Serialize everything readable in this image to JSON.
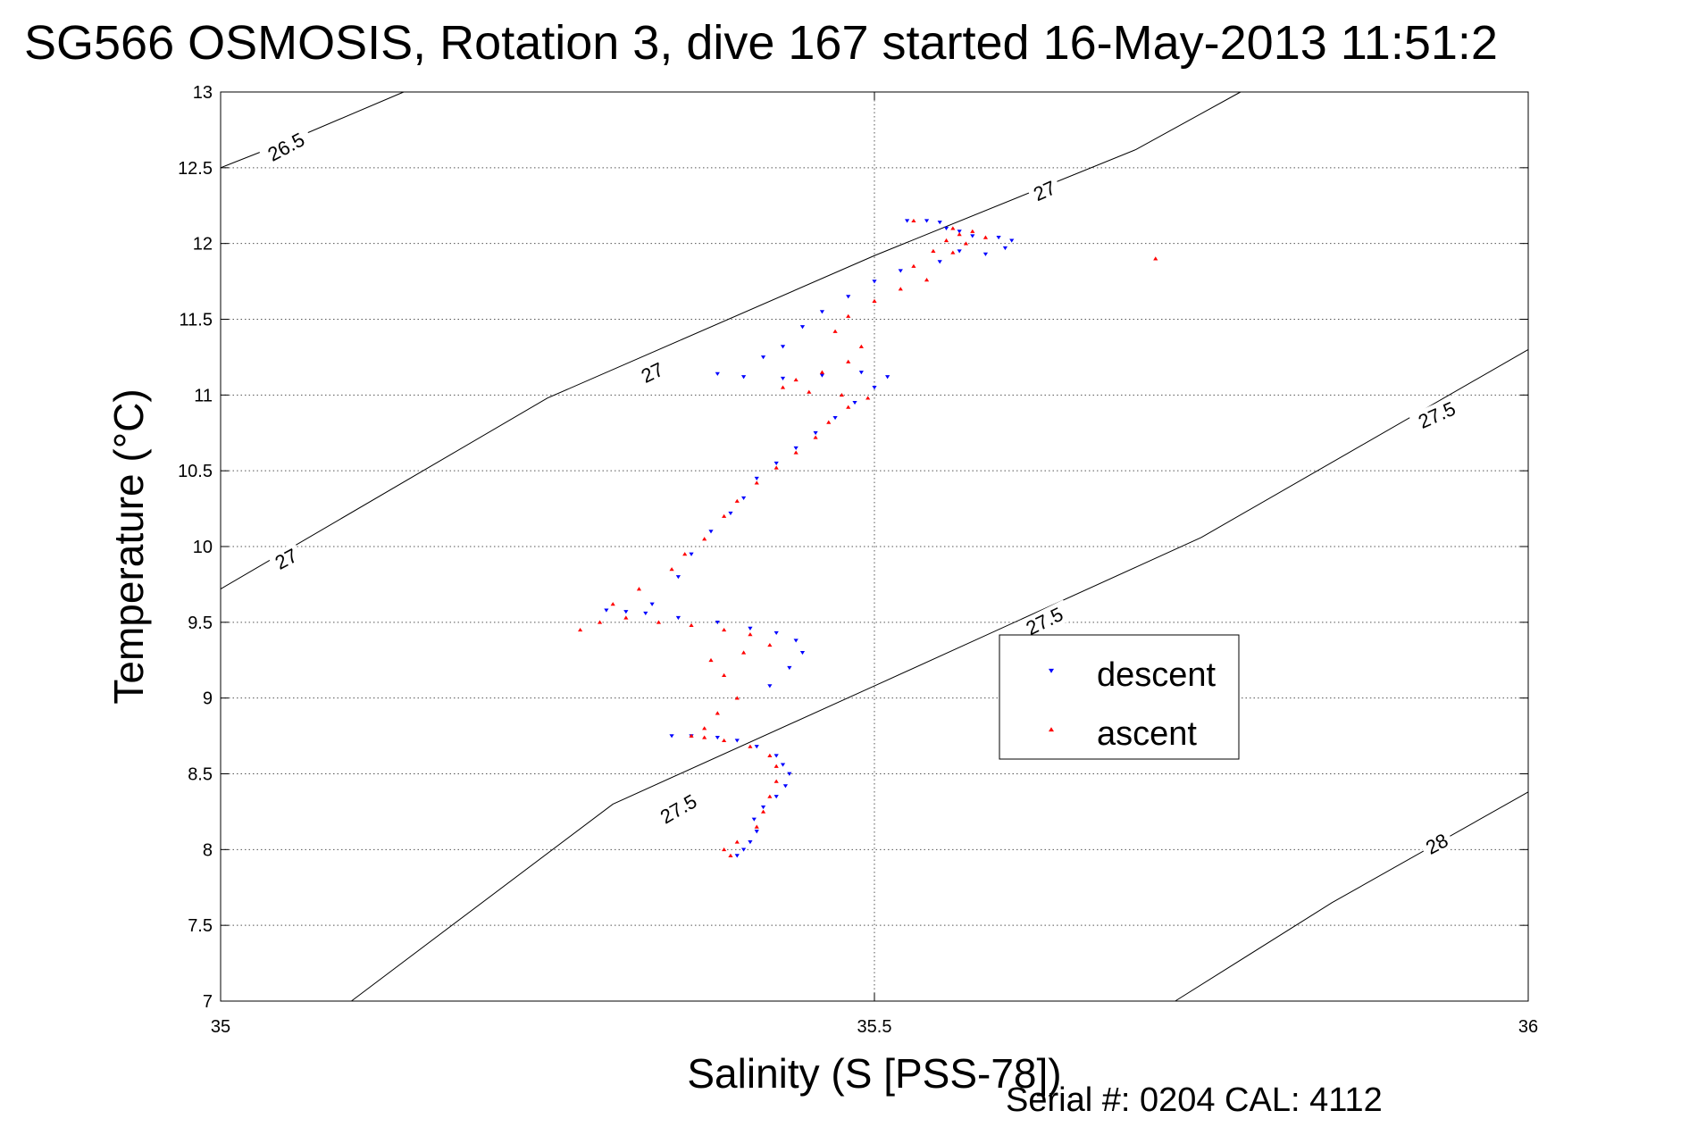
{
  "chart_data": {
    "type": "scatter",
    "title": "SG566 OSMOSIS, Rotation 3, dive 167 started 16-May-2013 11:51:2",
    "xlabel": "Salinity (S [PSS-78])",
    "ylabel": "Temperature (°C)",
    "xlim": [
      35,
      36
    ],
    "ylim": [
      7,
      13
    ],
    "x_ticks": [
      "35",
      "35.5",
      "36"
    ],
    "y_ticks": [
      "7",
      "7.5",
      "8",
      "8.5",
      "9",
      "9.5",
      "10",
      "10.5",
      "11",
      "11.5",
      "12",
      "12.5",
      "13"
    ],
    "grid": true,
    "legend_position": "center-right",
    "density_contours": {
      "lines": [
        {
          "value": "26.5",
          "points": [
            [
              35.0,
              12.5
            ],
            [
              35.05,
              12.67
            ],
            [
              35.14,
              13.0
            ]
          ]
        },
        {
          "value": "27",
          "points": [
            [
              35.0,
              9.72
            ],
            [
              35.25,
              10.98
            ],
            [
              35.5,
              11.92
            ],
            [
              35.7,
              12.62
            ],
            [
              35.78,
              13.0
            ]
          ]
        },
        {
          "value": "27.5",
          "points": [
            [
              35.1,
              7.0
            ],
            [
              35.3,
              8.3
            ],
            [
              35.5,
              9.08
            ],
            [
              35.75,
              10.06
            ],
            [
              36.0,
              11.3
            ]
          ]
        },
        {
          "value": "28",
          "points": [
            [
              35.73,
              7.0
            ],
            [
              35.85,
              7.65
            ],
            [
              36.0,
              8.38
            ]
          ]
        }
      ],
      "labels": [
        {
          "text": "26.5",
          "s": 35.05,
          "t": 12.64,
          "angle": -28
        },
        {
          "text": "27",
          "s": 35.05,
          "t": 9.92,
          "angle": -28
        },
        {
          "text": "27",
          "s": 35.33,
          "t": 11.15,
          "angle": -26
        },
        {
          "text": "27",
          "s": 35.63,
          "t": 12.35,
          "angle": -24
        },
        {
          "text": "27.5",
          "s": 35.35,
          "t": 8.27,
          "angle": -30
        },
        {
          "text": "27.5",
          "s": 35.63,
          "t": 9.51,
          "angle": -26
        },
        {
          "text": "27.5",
          "s": 35.93,
          "t": 10.87,
          "angle": -24
        },
        {
          "text": "28",
          "s": 35.93,
          "t": 8.04,
          "angle": -28
        }
      ]
    },
    "series": [
      {
        "name": "descent",
        "color": "#0000ff",
        "marker": "triangle-down",
        "points": [
          [
            35.395,
            7.96
          ],
          [
            35.4,
            8.0
          ],
          [
            35.405,
            8.05
          ],
          [
            35.41,
            8.12
          ],
          [
            35.408,
            8.2
          ],
          [
            35.415,
            8.28
          ],
          [
            35.425,
            8.35
          ],
          [
            35.432,
            8.42
          ],
          [
            35.435,
            8.5
          ],
          [
            35.43,
            8.56
          ],
          [
            35.425,
            8.62
          ],
          [
            35.41,
            8.68
          ],
          [
            35.395,
            8.72
          ],
          [
            35.38,
            8.74
          ],
          [
            35.36,
            8.75
          ],
          [
            35.345,
            8.75
          ],
          [
            35.42,
            9.08
          ],
          [
            35.435,
            9.2
          ],
          [
            35.445,
            9.3
          ],
          [
            35.44,
            9.38
          ],
          [
            35.425,
            9.43
          ],
          [
            35.405,
            9.46
          ],
          [
            35.38,
            9.5
          ],
          [
            35.35,
            9.53
          ],
          [
            35.325,
            9.56
          ],
          [
            35.31,
            9.57
          ],
          [
            35.295,
            9.58
          ],
          [
            35.33,
            9.62
          ],
          [
            35.35,
            9.8
          ],
          [
            35.36,
            9.95
          ],
          [
            35.375,
            10.1
          ],
          [
            35.39,
            10.22
          ],
          [
            35.4,
            10.32
          ],
          [
            35.41,
            10.45
          ],
          [
            35.425,
            10.55
          ],
          [
            35.44,
            10.65
          ],
          [
            35.455,
            10.75
          ],
          [
            35.47,
            10.85
          ],
          [
            35.485,
            10.95
          ],
          [
            35.5,
            11.05
          ],
          [
            35.51,
            11.12
          ],
          [
            35.49,
            11.15
          ],
          [
            35.46,
            11.13
          ],
          [
            35.43,
            11.11
          ],
          [
            35.4,
            11.12
          ],
          [
            35.38,
            11.14
          ],
          [
            35.415,
            11.25
          ],
          [
            35.43,
            11.32
          ],
          [
            35.445,
            11.45
          ],
          [
            35.46,
            11.55
          ],
          [
            35.48,
            11.65
          ],
          [
            35.5,
            11.75
          ],
          [
            35.52,
            11.82
          ],
          [
            35.55,
            11.88
          ],
          [
            35.565,
            11.95
          ],
          [
            35.585,
            11.93
          ],
          [
            35.6,
            11.97
          ],
          [
            35.605,
            12.02
          ],
          [
            35.595,
            12.04
          ],
          [
            35.575,
            12.05
          ],
          [
            35.565,
            12.08
          ],
          [
            35.555,
            12.1
          ],
          [
            35.55,
            12.14
          ],
          [
            35.54,
            12.15
          ],
          [
            35.525,
            12.15
          ]
        ]
      },
      {
        "name": "ascent",
        "color": "#ff0000",
        "marker": "triangle-up",
        "points": [
          [
            35.39,
            7.96
          ],
          [
            35.385,
            8.0
          ],
          [
            35.395,
            8.05
          ],
          [
            35.41,
            8.15
          ],
          [
            35.415,
            8.25
          ],
          [
            35.42,
            8.35
          ],
          [
            35.425,
            8.45
          ],
          [
            35.425,
            8.55
          ],
          [
            35.42,
            8.62
          ],
          [
            35.405,
            8.68
          ],
          [
            35.385,
            8.72
          ],
          [
            35.37,
            8.74
          ],
          [
            35.36,
            8.75
          ],
          [
            35.37,
            8.8
          ],
          [
            35.38,
            8.9
          ],
          [
            35.395,
            9.0
          ],
          [
            35.385,
            9.15
          ],
          [
            35.375,
            9.25
          ],
          [
            35.4,
            9.3
          ],
          [
            35.42,
            9.35
          ],
          [
            35.405,
            9.42
          ],
          [
            35.385,
            9.45
          ],
          [
            35.36,
            9.48
          ],
          [
            35.335,
            9.5
          ],
          [
            35.31,
            9.53
          ],
          [
            35.29,
            9.5
          ],
          [
            35.275,
            9.45
          ],
          [
            35.3,
            9.62
          ],
          [
            35.32,
            9.72
          ],
          [
            35.345,
            9.85
          ],
          [
            35.355,
            9.95
          ],
          [
            35.37,
            10.05
          ],
          [
            35.385,
            10.2
          ],
          [
            35.395,
            10.3
          ],
          [
            35.41,
            10.42
          ],
          [
            35.425,
            10.52
          ],
          [
            35.44,
            10.62
          ],
          [
            35.455,
            10.72
          ],
          [
            35.465,
            10.82
          ],
          [
            35.48,
            10.92
          ],
          [
            35.495,
            10.98
          ],
          [
            35.475,
            11.0
          ],
          [
            35.45,
            11.02
          ],
          [
            35.43,
            11.05
          ],
          [
            35.44,
            11.1
          ],
          [
            35.46,
            11.15
          ],
          [
            35.48,
            11.22
          ],
          [
            35.49,
            11.32
          ],
          [
            35.47,
            11.42
          ],
          [
            35.48,
            11.52
          ],
          [
            35.5,
            11.62
          ],
          [
            35.52,
            11.7
          ],
          [
            35.54,
            11.76
          ],
          [
            35.53,
            11.85
          ],
          [
            35.545,
            11.95
          ],
          [
            35.555,
            12.02
          ],
          [
            35.565,
            12.06
          ],
          [
            35.56,
            12.1
          ],
          [
            35.575,
            12.08
          ],
          [
            35.585,
            12.04
          ],
          [
            35.57,
            12.0
          ],
          [
            35.56,
            11.94
          ],
          [
            35.53,
            12.15
          ],
          [
            35.715,
            11.9
          ]
        ]
      }
    ]
  },
  "footer": {
    "text": "Serial #: 0204  CAL: 4112"
  }
}
